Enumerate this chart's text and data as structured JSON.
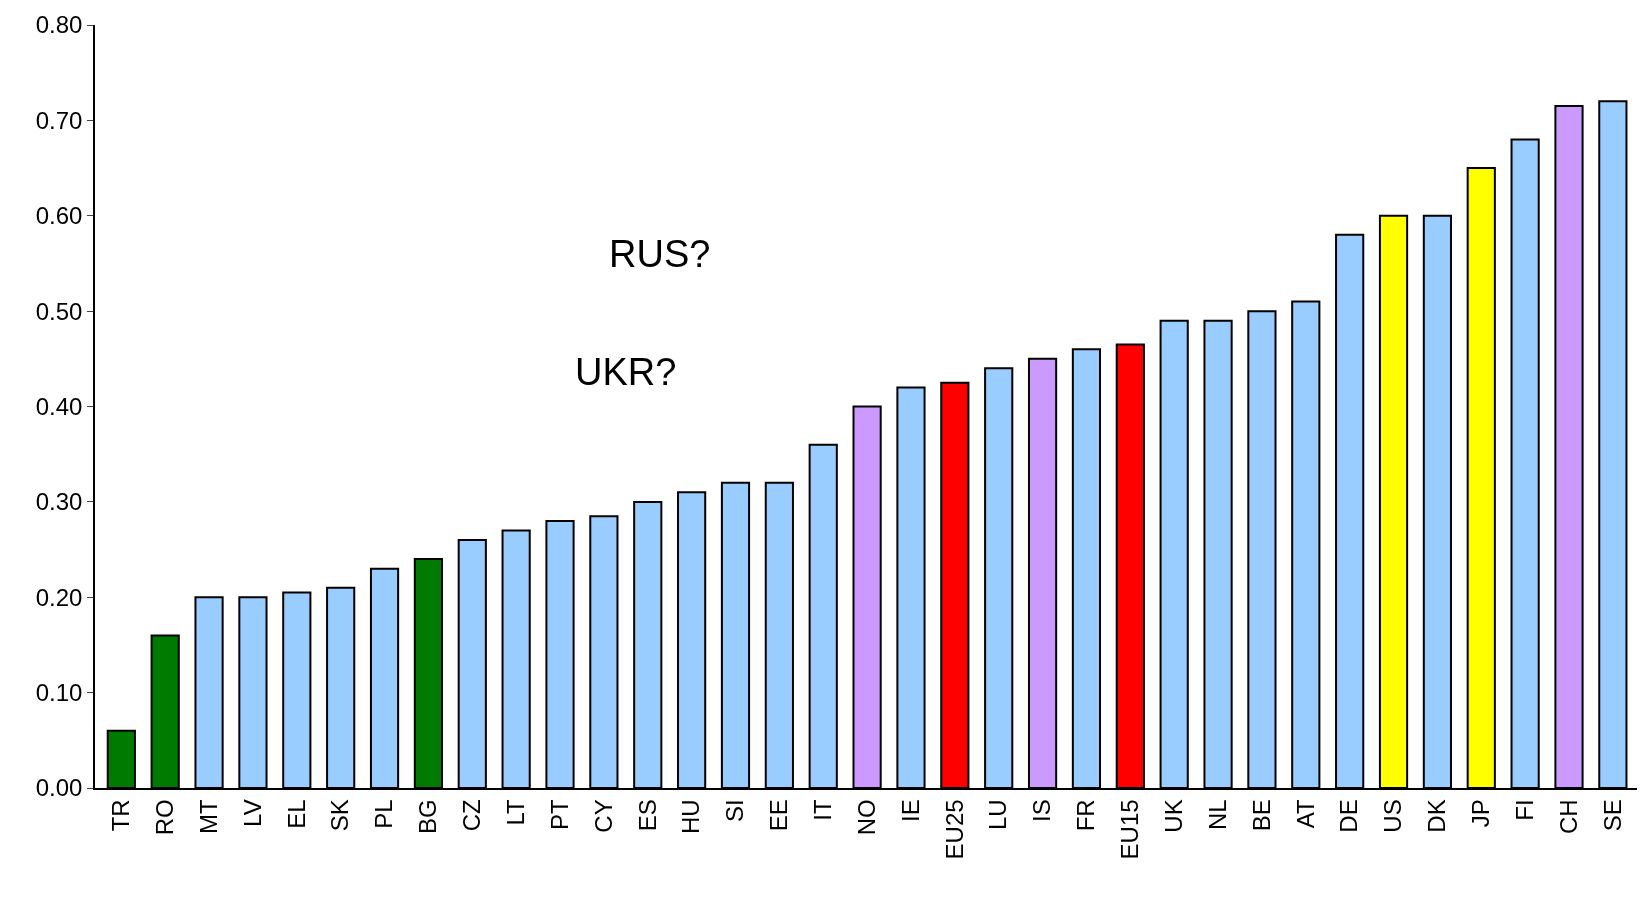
{
  "chart_data": {
    "type": "bar",
    "categories": [
      "TR",
      "RO",
      "MT",
      "LV",
      "EL",
      "SK",
      "PL",
      "BG",
      "CZ",
      "LT",
      "PT",
      "CY",
      "ES",
      "HU",
      "SI",
      "EE",
      "IT",
      "NO",
      "IE",
      "EU25",
      "LU",
      "IS",
      "FR",
      "EU15",
      "UK",
      "NL",
      "BE",
      "AT",
      "DE",
      "US",
      "DK",
      "JP",
      "FI",
      "CH",
      "SE"
    ],
    "values": [
      0.06,
      0.16,
      0.2,
      0.2,
      0.205,
      0.21,
      0.23,
      0.24,
      0.26,
      0.27,
      0.28,
      0.285,
      0.3,
      0.31,
      0.32,
      0.32,
      0.36,
      0.4,
      0.42,
      0.425,
      0.44,
      0.45,
      0.46,
      0.465,
      0.49,
      0.49,
      0.5,
      0.51,
      0.58,
      0.6,
      0.6,
      0.65,
      0.68,
      0.715,
      0.72
    ],
    "colors": [
      "#007a00",
      "#007a00",
      "#99ccff",
      "#99ccff",
      "#99ccff",
      "#99ccff",
      "#99ccff",
      "#007a00",
      "#99ccff",
      "#99ccff",
      "#99ccff",
      "#99ccff",
      "#99ccff",
      "#99ccff",
      "#99ccff",
      "#99ccff",
      "#99ccff",
      "#cc99ff",
      "#99ccff",
      "#ff0000",
      "#99ccff",
      "#cc99ff",
      "#99ccff",
      "#ff0000",
      "#99ccff",
      "#99ccff",
      "#99ccff",
      "#99ccff",
      "#99ccff",
      "#ffff00",
      "#99ccff",
      "#ffff00",
      "#99ccff",
      "#cc99ff",
      "#99ccff"
    ],
    "ylim": [
      0,
      0.8
    ],
    "yticks": [
      {
        "value": 0,
        "label": "0.00"
      },
      {
        "value": 0.1,
        "label": "0.10"
      },
      {
        "value": 0.2,
        "label": "0.20"
      },
      {
        "value": 0.3,
        "label": "0.30"
      },
      {
        "value": 0.4,
        "label": "0.40"
      },
      {
        "value": 0.5,
        "label": "0.50"
      },
      {
        "value": 0.6,
        "label": "0.60"
      },
      {
        "value": 0.7,
        "label": "0.70"
      },
      {
        "value": 0.8,
        "label": "0.80"
      }
    ],
    "annotations": [
      "RUS?",
      "UKR?"
    ]
  }
}
